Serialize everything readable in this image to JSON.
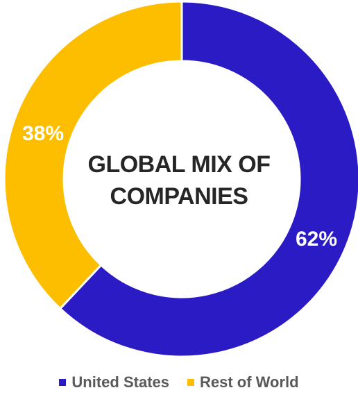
{
  "chart_data": {
    "type": "pie",
    "donut": true,
    "title": [
      "GLOBAL MIX OF",
      "COMPANIES"
    ],
    "slices": [
      {
        "name": "United States",
        "value": 62,
        "label": "62%",
        "color": "#2B1BC4"
      },
      {
        "name": "Rest of World",
        "value": 38,
        "label": "38%",
        "color": "#FDBE00"
      }
    ],
    "start": "top",
    "direction": "clockwise",
    "legend_position": "bottom"
  }
}
